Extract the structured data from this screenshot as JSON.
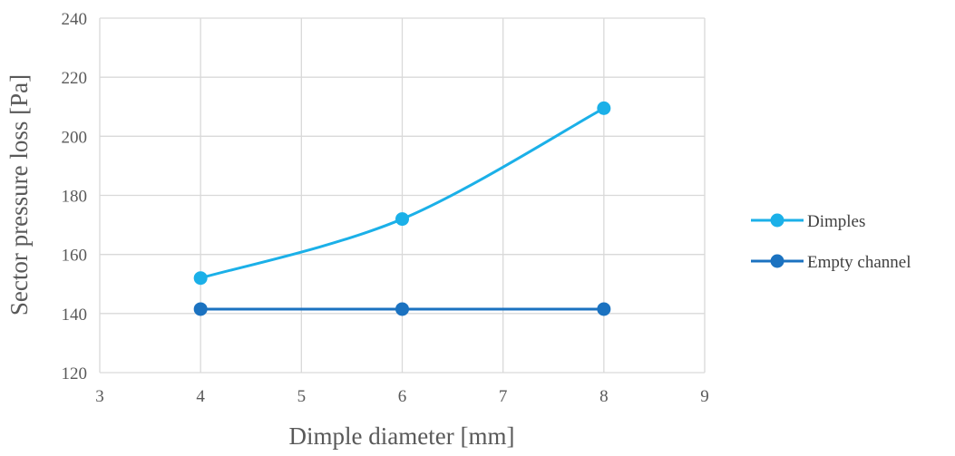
{
  "chart_data": {
    "type": "line",
    "title": "",
    "xlabel": "Dimple diameter [mm]",
    "ylabel": "Sector pressure loss [Pa]",
    "xlim": [
      3,
      9
    ],
    "ylim": [
      120,
      240
    ],
    "xticks": [
      3,
      4,
      5,
      6,
      7,
      8,
      9
    ],
    "yticks": [
      120,
      140,
      160,
      180,
      200,
      220,
      240
    ],
    "grid": true,
    "legend_position": "right",
    "x": [
      4,
      6,
      8
    ],
    "series": [
      {
        "name": "Dimples",
        "values": [
          152,
          172,
          209.5
        ],
        "color": "#1bb0e8",
        "smooth": true
      },
      {
        "name": "Empty channel",
        "values": [
          141.5,
          141.5,
          141.5
        ],
        "color": "#1b72c0",
        "smooth": false
      }
    ]
  }
}
